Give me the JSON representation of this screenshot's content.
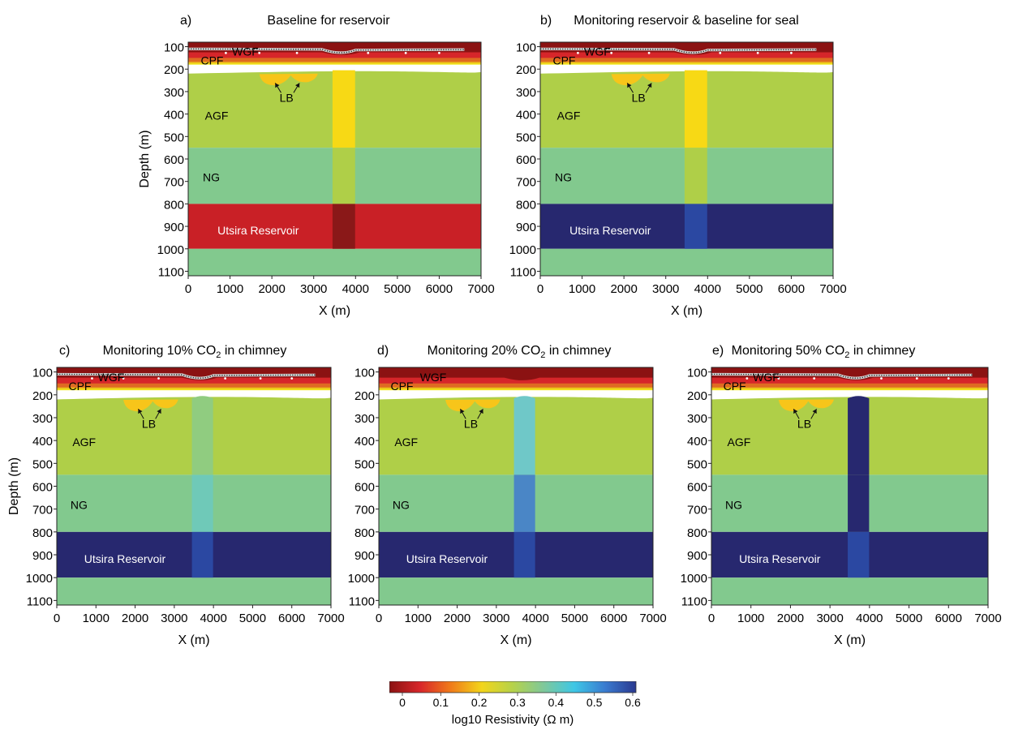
{
  "panels": [
    {
      "id": "a",
      "letter": "a)",
      "title": "Baseline for reservoir",
      "title_co2": false,
      "colors": {
        "cpf": "#f2e81c",
        "agf": "#afcf48",
        "ng": "#82c98e",
        "res": "#c92026",
        "below": "#82c98e",
        "chim_upper": "#f7d915",
        "chim_ng": "#afcf48",
        "chim_res": "#8a1818"
      },
      "chimney_top": 200,
      "receivers": true,
      "reservoir_label": "Utsira Reservoir"
    },
    {
      "id": "b",
      "letter": "b)",
      "title": "Monitoring  reservoir & baseline for seal",
      "title_co2": false,
      "colors": {
        "cpf": "#f2e81c",
        "agf": "#afcf48",
        "ng": "#82c98e",
        "res": "#27286f",
        "below": "#82c98e",
        "chim_upper": "#f7d915",
        "chim_ng": "#afcf48",
        "chim_res": "#2b48a2"
      },
      "chimney_top": 200,
      "receivers": true,
      "reservoir_label": "Utsira Reservoir"
    },
    {
      "id": "c",
      "letter": "c)",
      "title_pre": "Monitoring 10% CO",
      "title_sub": "2",
      "title_post": " in chimney",
      "title_co2": true,
      "colors": {
        "cpf": "#f2e81c",
        "agf": "#afcf48",
        "ng": "#82c98e",
        "res": "#27286f",
        "below": "#82c98e",
        "chim_upper": "#90cc80",
        "chim_ng": "#6fc9b8",
        "chim_res": "#2b48a2"
      },
      "chimney_top": 200,
      "receivers": true,
      "reservoir_label": "Utsira Reservoir"
    },
    {
      "id": "d",
      "letter": "d)",
      "title_pre": "Monitoring 20% CO",
      "title_sub": "2",
      "title_post": " in chimney",
      "title_co2": true,
      "colors": {
        "cpf": "#f2e81c",
        "agf": "#afcf48",
        "ng": "#82c98e",
        "res": "#27286f",
        "below": "#82c98e",
        "chim_upper": "#6fc8c8",
        "chim_ng": "#4a86c6",
        "chim_res": "#2b48a2"
      },
      "chimney_top": 200,
      "receivers": false,
      "reservoir_label": "Utsira Reservoir"
    },
    {
      "id": "e",
      "letter": "e)",
      "title_pre": "Monitoring 50% CO",
      "title_sub": "2",
      "title_post": " in chimney",
      "title_co2": true,
      "colors": {
        "cpf": "#f2e81c",
        "agf": "#afcf48",
        "ng": "#82c98e",
        "res": "#27286f",
        "below": "#82c98e",
        "chim_upper": "#27286f",
        "chim_ng": "#27286f",
        "chim_res": "#2b48a2"
      },
      "chimney_top": 200,
      "receivers": true,
      "reservoir_label": "Utsira Reservoir"
    }
  ],
  "layer_labels": {
    "wgf": "WGF",
    "cpf": "CPF",
    "lb": "LB",
    "agf": "AGF",
    "ng": "NG"
  },
  "axes": {
    "x_ticks": [
      0,
      1000,
      2000,
      3000,
      4000,
      5000,
      6000,
      7000
    ],
    "y_ticks": [
      100,
      200,
      300,
      400,
      500,
      600,
      700,
      800,
      900,
      1000,
      1100
    ],
    "x_label": "X (m)",
    "y_label": "Depth (m)",
    "x_range": [
      0,
      7000
    ],
    "y_range": [
      80,
      1120
    ]
  },
  "colorbar": {
    "ticks": [
      "0",
      "0.1",
      "0.2",
      "0.3",
      "0.4",
      "0.5",
      "0.6"
    ],
    "label": "log10 Resistivity (Ω m)",
    "gradient": [
      "#8b1212",
      "#d8262a",
      "#f07c1a",
      "#f2d51a",
      "#b6d24a",
      "#7fc89a",
      "#3ec7e6",
      "#3a7bd0",
      "#2a3990"
    ]
  }
}
